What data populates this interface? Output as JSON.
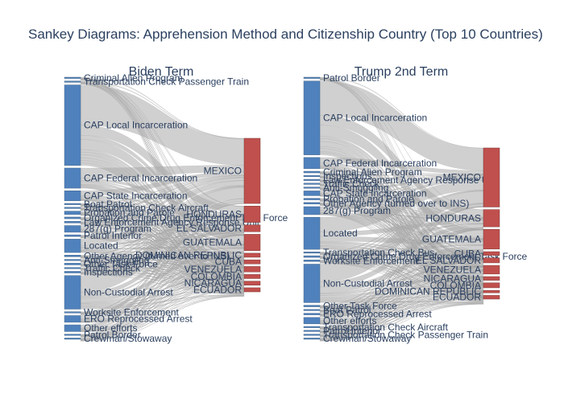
{
  "title": "Sankey Diagrams: Apprehension Method and Citizenship Country (Top 10 Countries)",
  "colors": {
    "source_node": "#4f81bd",
    "target_node": "#c0504d",
    "link": "#aaaaaa",
    "text": "#2a3f5f"
  },
  "chart_data": [
    {
      "type": "sankey",
      "subtitle": "Biden Term",
      "sources": [
        {
          "label": "Criminal Alien Program",
          "weight": 0.3
        },
        {
          "label": "Transportation Check Passenger Train",
          "weight": 0.3
        },
        {
          "label": "CAP Local Incarceration",
          "weight": 48
        },
        {
          "label": "CAP Federal Incarceration",
          "weight": 12
        },
        {
          "label": "CAP State Incarceration",
          "weight": 6
        },
        {
          "label": "Boat Patrol",
          "weight": 0.6
        },
        {
          "label": "Transportation Check Aircraft",
          "weight": 0.6
        },
        {
          "label": "Probation and Parole",
          "weight": 2
        },
        {
          "label": "Organized Crime Drug Enforcement Task Force",
          "weight": 1
        },
        {
          "label": "Law Enforcement Agency Response Unit",
          "weight": 1
        },
        {
          "label": "287(g) Program",
          "weight": 4
        },
        {
          "label": "Patrol Interior",
          "weight": 1
        },
        {
          "label": "Located",
          "weight": 8
        },
        {
          "label": "Other Agency (turned over to INS)",
          "weight": 1
        },
        {
          "label": "Anti-Smuggling",
          "weight": 0.6
        },
        {
          "label": "Other Task Force",
          "weight": 1
        },
        {
          "label": "Traffic Check",
          "weight": 0.6
        },
        {
          "label": "Inspections",
          "weight": 1
        },
        {
          "label": "Non-Custodial Arrest",
          "weight": 20
        },
        {
          "label": "Worksite Enforcement",
          "weight": 0.6
        },
        {
          "label": "ERO Reprocessed Arrest",
          "weight": 4
        },
        {
          "label": "Other efforts",
          "weight": 4
        },
        {
          "label": "Patrol Border",
          "weight": 0.6
        },
        {
          "label": "Crewman/Stowaway",
          "weight": 0.3
        }
      ],
      "targets": [
        {
          "label": "MEXICO",
          "weight": 48
        },
        {
          "label": "HONDURAS",
          "weight": 12
        },
        {
          "label": "EL SALVADOR",
          "weight": 5
        },
        {
          "label": "GUATEMALA",
          "weight": 12
        },
        {
          "label": "DOMINICAN REPUBLIC",
          "weight": 3
        },
        {
          "label": "CUBA",
          "weight": 3
        },
        {
          "label": "VENEZUELA",
          "weight": 4
        },
        {
          "label": "COLOMBIA",
          "weight": 3
        },
        {
          "label": "NICARAGUA",
          "weight": 3
        },
        {
          "label": "ECUADOR",
          "weight": 3
        }
      ]
    },
    {
      "type": "sankey",
      "subtitle": "Trump 2nd Term",
      "sources": [
        {
          "label": "Patrol Border",
          "weight": 0.6
        },
        {
          "label": "CAP Local Incarceration",
          "weight": 46
        },
        {
          "label": "CAP Federal Incarceration",
          "weight": 7
        },
        {
          "label": "Criminal Alien Program",
          "weight": 1
        },
        {
          "label": "Inspections",
          "weight": 0.6
        },
        {
          "label": "Law Enforcement Agency Response Unit",
          "weight": 0.6
        },
        {
          "label": "Traffic Check",
          "weight": 0.6
        },
        {
          "label": "Anti-Smuggling",
          "weight": 0.6
        },
        {
          "label": "CAP State Incarceration",
          "weight": 3
        },
        {
          "label": "Probation and Parole",
          "weight": 1
        },
        {
          "label": "Other Agency (turned over to INS)",
          "weight": 1
        },
        {
          "label": "287(g) Program",
          "weight": 5
        },
        {
          "label": "Located",
          "weight": 20
        },
        {
          "label": "Transportation Check Bus",
          "weight": 0.6
        },
        {
          "label": "Organized Crime Drug Enforcement Task Force",
          "weight": 1
        },
        {
          "label": "Worksite Enforcement",
          "weight": 1
        },
        {
          "label": "Non-Custodial Arrest",
          "weight": 24
        },
        {
          "label": "Other Task Force",
          "weight": 1
        },
        {
          "label": "Boat Patrol",
          "weight": 0.6
        },
        {
          "label": "ERO Reprocessed Arrest",
          "weight": 1
        },
        {
          "label": "Other efforts",
          "weight": 4
        },
        {
          "label": "Transportation Check Aircraft",
          "weight": 0.6
        },
        {
          "label": "Patrol Interior",
          "weight": 0.6
        },
        {
          "label": "Transportation Check Passenger Train",
          "weight": 0.3
        },
        {
          "label": "Crewman/Stowaway",
          "weight": 0.3
        }
      ],
      "targets": [
        {
          "label": "MEXICO",
          "weight": 48
        },
        {
          "label": "HONDURAS",
          "weight": 14
        },
        {
          "label": "GUATEMALA",
          "weight": 16
        },
        {
          "label": "CUBA",
          "weight": 3
        },
        {
          "label": "EL SALVADOR",
          "weight": 4
        },
        {
          "label": "VENEZUELA",
          "weight": 7
        },
        {
          "label": "NICARAGUA",
          "weight": 3
        },
        {
          "label": "COLOMBIA",
          "weight": 4
        },
        {
          "label": "DOMINICAN REPUBLIC",
          "weight": 2
        },
        {
          "label": "ECUADOR",
          "weight": 3
        }
      ]
    }
  ]
}
